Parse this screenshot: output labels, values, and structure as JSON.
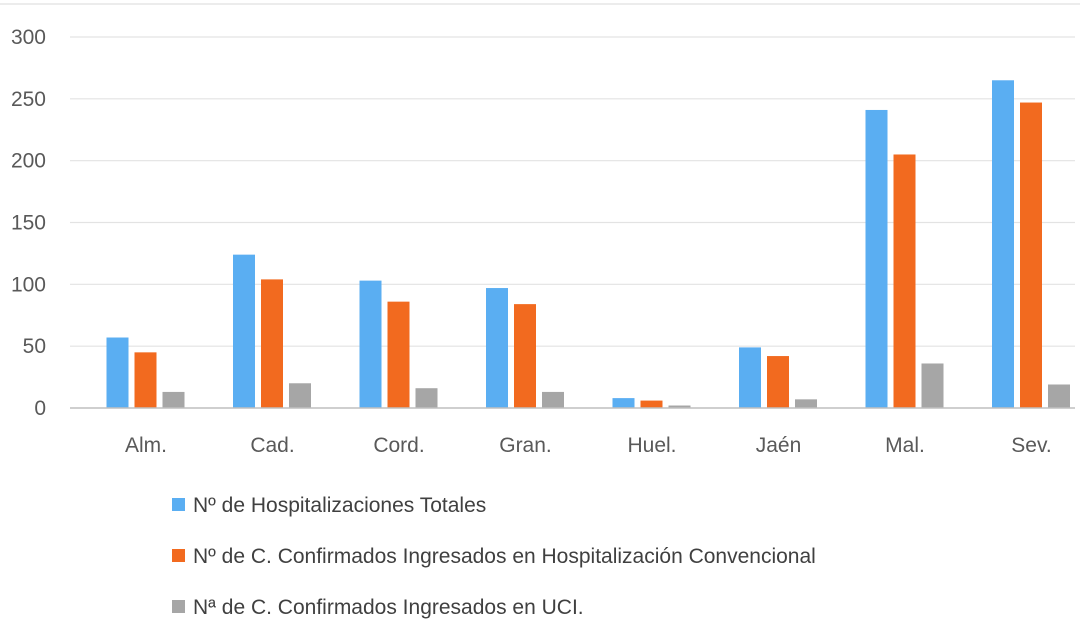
{
  "chart_data": {
    "type": "bar",
    "categories": [
      "Alm.",
      "Cad.",
      "Cord.",
      "Gran.",
      "Huel.",
      "Jaén",
      "Mal.",
      "Sev."
    ],
    "series": [
      {
        "name": "Nº de Hospitalizaciones Totales",
        "color": "#5aaef2",
        "values": [
          57,
          124,
          103,
          97,
          8,
          49,
          241,
          265
        ]
      },
      {
        "name": "Nº de C. Confirmados Ingresados en Hospitalización Convencional",
        "color": "#f26a1f",
        "values": [
          45,
          104,
          86,
          84,
          6,
          42,
          205,
          247
        ]
      },
      {
        "name": "Nª de C. Confirmados Ingresados en UCI.",
        "color": "#a6a6a6",
        "values": [
          13,
          20,
          16,
          13,
          2,
          7,
          36,
          19
        ]
      }
    ],
    "yticks": [
      "0",
      "50",
      "100",
      "150",
      "200",
      "250",
      "300"
    ],
    "ylim": [
      0,
      300
    ],
    "grid": true,
    "legend_position": "bottom",
    "title": "",
    "xlabel": "",
    "ylabel": ""
  }
}
